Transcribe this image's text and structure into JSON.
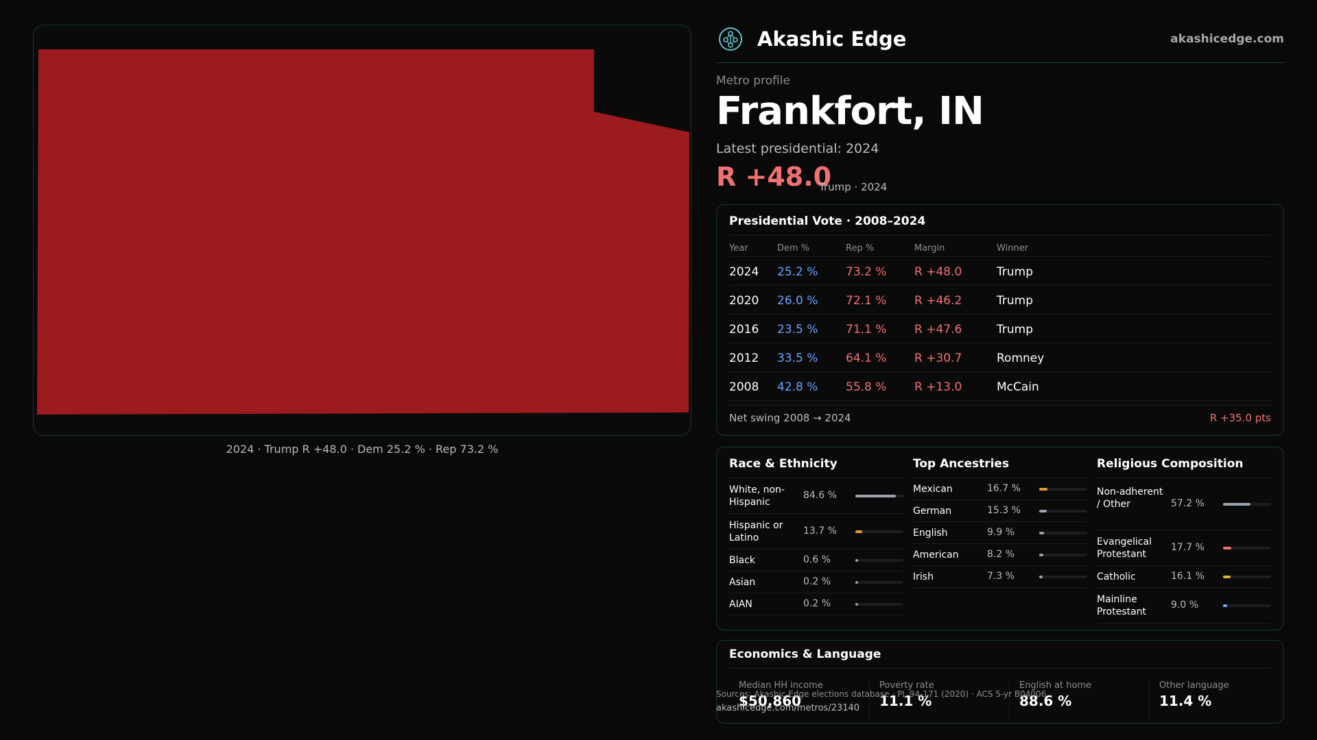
{
  "map": {
    "fill_color": "#9b1b1e",
    "caption": "2024 · Trump R +48.0 · Dem 25.2 % · Rep 73.2 %"
  },
  "brand": {
    "name": "Akashic Edge",
    "url": "akashicedge.com",
    "logo_icon": "tree-of-life-icon",
    "accent": "#5fc6d0"
  },
  "profile": {
    "kicker": "Metro profile",
    "title": "Frankfort, IN",
    "latest_label": "Latest presidential: 2024",
    "margin": "R +48.0",
    "margin_sub": "Trump · 2024"
  },
  "colors": {
    "dem": "#6aa3ff",
    "rep": "#f07171"
  },
  "presidential": {
    "title": "Presidential Vote · 2008–2024",
    "headers": [
      "Year",
      "Dem %",
      "Rep %",
      "Margin",
      "Winner"
    ],
    "rows": [
      {
        "year": "2024",
        "dem": "25.2 %",
        "rep": "73.2 %",
        "margin": "R +48.0",
        "winner": "Trump"
      },
      {
        "year": "2020",
        "dem": "26.0 %",
        "rep": "72.1 %",
        "margin": "R +46.2",
        "winner": "Trump"
      },
      {
        "year": "2016",
        "dem": "23.5 %",
        "rep": "71.1 %",
        "margin": "R +47.6",
        "winner": "Trump"
      },
      {
        "year": "2012",
        "dem": "33.5 %",
        "rep": "64.1 %",
        "margin": "R +30.7",
        "winner": "Romney"
      },
      {
        "year": "2008",
        "dem": "42.8 %",
        "rep": "55.8 %",
        "margin": "R +13.0",
        "winner": "McCain"
      }
    ],
    "swing_label": "Net swing 2008 → 2024",
    "swing_value": "R +35.0 pts"
  },
  "demographics": {
    "race": {
      "title": "Race & Ethnicity",
      "items": [
        {
          "label": "White, non-Hispanic",
          "pct": "84.6 %",
          "value": 84.6,
          "color": "#9aa2ad"
        },
        {
          "label": "Hispanic or Latino",
          "pct": "13.7 %",
          "value": 13.7,
          "color": "#e39a2c"
        },
        {
          "label": "Black",
          "pct": "0.6 %",
          "value": 0.6,
          "color": "#9aa2ad"
        },
        {
          "label": "Asian",
          "pct": "0.2 %",
          "value": 0.2,
          "color": "#9aa2ad"
        },
        {
          "label": "AIAN",
          "pct": "0.2 %",
          "value": 0.2,
          "color": "#9aa2ad"
        }
      ]
    },
    "ancestry": {
      "title": "Top Ancestries",
      "items": [
        {
          "label": "Mexican",
          "pct": "16.7 %",
          "value": 16.7,
          "color": "#e39a2c"
        },
        {
          "label": "German",
          "pct": "15.3 %",
          "value": 15.3,
          "color": "#9aa2ad"
        },
        {
          "label": "English",
          "pct": "9.9 %",
          "value": 9.9,
          "color": "#9aa2ad"
        },
        {
          "label": "American",
          "pct": "8.2 %",
          "value": 8.2,
          "color": "#9aa2ad"
        },
        {
          "label": "Irish",
          "pct": "7.3 %",
          "value": 7.3,
          "color": "#9aa2ad"
        }
      ]
    },
    "religion": {
      "title": "Religious Composition",
      "items": [
        {
          "label": "Non-adherent / Other",
          "pct": "57.2 %",
          "value": 57.2,
          "color": "#9aa2ad"
        },
        {
          "label": "Evangelical Protestant",
          "pct": "17.7 %",
          "value": 17.7,
          "color": "#f07171"
        },
        {
          "label": "Catholic",
          "pct": "16.1 %",
          "value": 16.1,
          "color": "#e3b52c"
        },
        {
          "label": "Mainline Protestant",
          "pct": "9.0 %",
          "value": 9.0,
          "color": "#6aa3ff"
        }
      ]
    }
  },
  "economics": {
    "title": "Economics & Language",
    "cells": [
      {
        "label": "Median HH income",
        "value": "$50,860"
      },
      {
        "label": "Poverty rate",
        "value": "11.1 %"
      },
      {
        "label": "English at home",
        "value": "88.6 %"
      },
      {
        "label": "Other language",
        "value": "11.4 %"
      }
    ]
  },
  "footer": {
    "sources": "Sources: Akashic Edge elections database · PL 94-171 (2020) · ACS 5-yr B04006",
    "url": "akashicedge.com/metros/23140"
  }
}
